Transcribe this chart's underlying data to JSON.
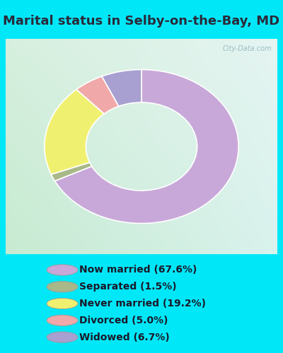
{
  "title": "Marital status in Selby-on-the-Bay, MD",
  "slices": [
    {
      "label": "Now married (67.6%)",
      "value": 67.6,
      "color": "#c8a8d8"
    },
    {
      "label": "Separated (1.5%)",
      "value": 1.5,
      "color": "#a8b888"
    },
    {
      "label": "Never married (19.2%)",
      "value": 19.2,
      "color": "#f0f070"
    },
    {
      "label": "Divorced (5.0%)",
      "value": 5.0,
      "color": "#f0a8a8"
    },
    {
      "label": "Widowed (6.7%)",
      "value": 6.7,
      "color": "#a8a0d0"
    }
  ],
  "bg_color": "#00e8f8",
  "chart_bg_tl": [
    0.84,
    0.94,
    0.87
  ],
  "chart_bg_tr": [
    0.9,
    0.96,
    0.95
  ],
  "chart_bg_bl": [
    0.78,
    0.92,
    0.82
  ],
  "chart_bg_br": [
    0.85,
    0.95,
    0.93
  ],
  "watermark": "City-Data.com",
  "title_fontsize": 13,
  "title_color": "#2a2a3a",
  "legend_fontsize": 10,
  "donut_r": 0.75,
  "donut_width": 0.32,
  "start_angle": 90
}
